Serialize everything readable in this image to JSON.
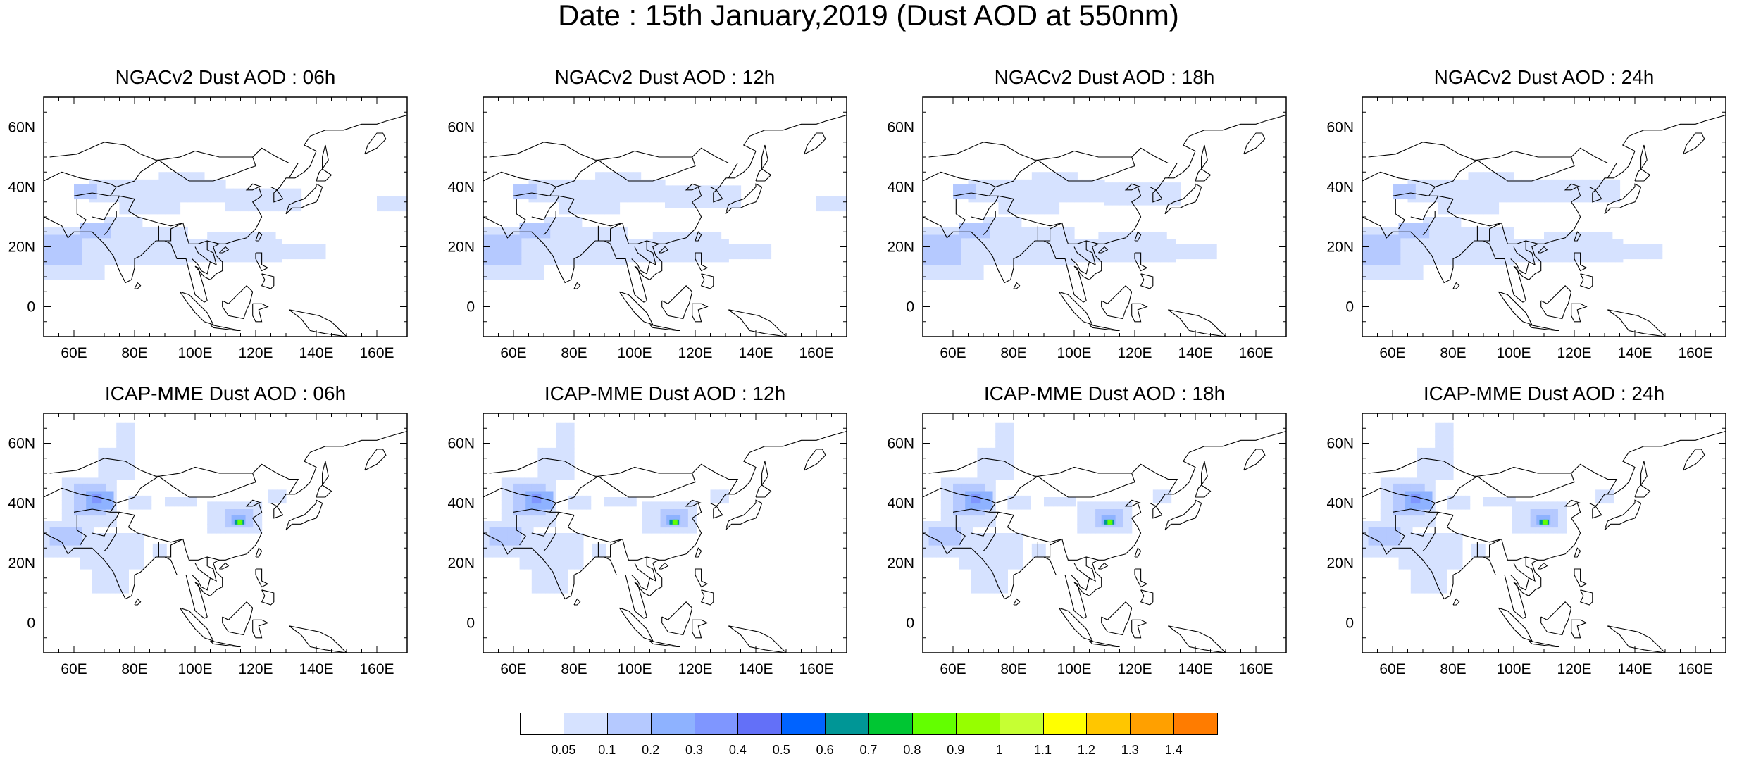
{
  "title": "Date : 15th January,2019 (Dust AOD at 550nm)",
  "panels": [
    {
      "title": "NGACv2 Dust AOD : 06h",
      "model": "ngac",
      "shift": 0
    },
    {
      "title": "NGACv2 Dust AOD : 12h",
      "model": "ngac",
      "shift": 1
    },
    {
      "title": "NGACv2 Dust AOD : 18h",
      "model": "ngac",
      "shift": 2
    },
    {
      "title": "NGACv2 Dust AOD : 24h",
      "model": "ngac",
      "shift": 3
    },
    {
      "title": "ICAP-MME Dust AOD : 06h",
      "model": "icap",
      "shift": 0
    },
    {
      "title": "ICAP-MME Dust AOD : 12h",
      "model": "icap",
      "shift": 1
    },
    {
      "title": "ICAP-MME Dust AOD : 18h",
      "model": "icap",
      "shift": 2
    },
    {
      "title": "ICAP-MME Dust AOD : 24h",
      "model": "icap",
      "shift": 3
    }
  ],
  "map": {
    "lon_range": [
      50,
      170
    ],
    "lat_range": [
      -10,
      70
    ],
    "lon_ticks": [
      {
        "value": 60,
        "label": "60E"
      },
      {
        "value": 80,
        "label": "80E"
      },
      {
        "value": 100,
        "label": "100E"
      },
      {
        "value": 120,
        "label": "120E"
      },
      {
        "value": 140,
        "label": "140E"
      },
      {
        "value": 160,
        "label": "160E"
      }
    ],
    "lat_ticks": [
      {
        "value": 60,
        "label": "60N"
      },
      {
        "value": 40,
        "label": "40N"
      },
      {
        "value": 20,
        "label": "20N"
      },
      {
        "value": 0,
        "label": "0"
      }
    ]
  },
  "colorbar": {
    "colors": [
      "#ffffff",
      "#d6e2ff",
      "#b5c9ff",
      "#8eb2ff",
      "#7f96ff",
      "#6370f8",
      "#0063ff",
      "#009696",
      "#00c633",
      "#63ff00",
      "#96ff00",
      "#c6ff33",
      "#ffff00",
      "#ffc600",
      "#ffa000",
      "#ff7c00",
      "#ff1900"
    ],
    "labels": [
      "0.05",
      "0.1",
      "0.2",
      "0.3",
      "0.4",
      "0.5",
      "0.6",
      "0.7",
      "0.8",
      "0.9",
      "1",
      "1.1",
      "1.2",
      "1.3",
      "1.4"
    ]
  }
}
